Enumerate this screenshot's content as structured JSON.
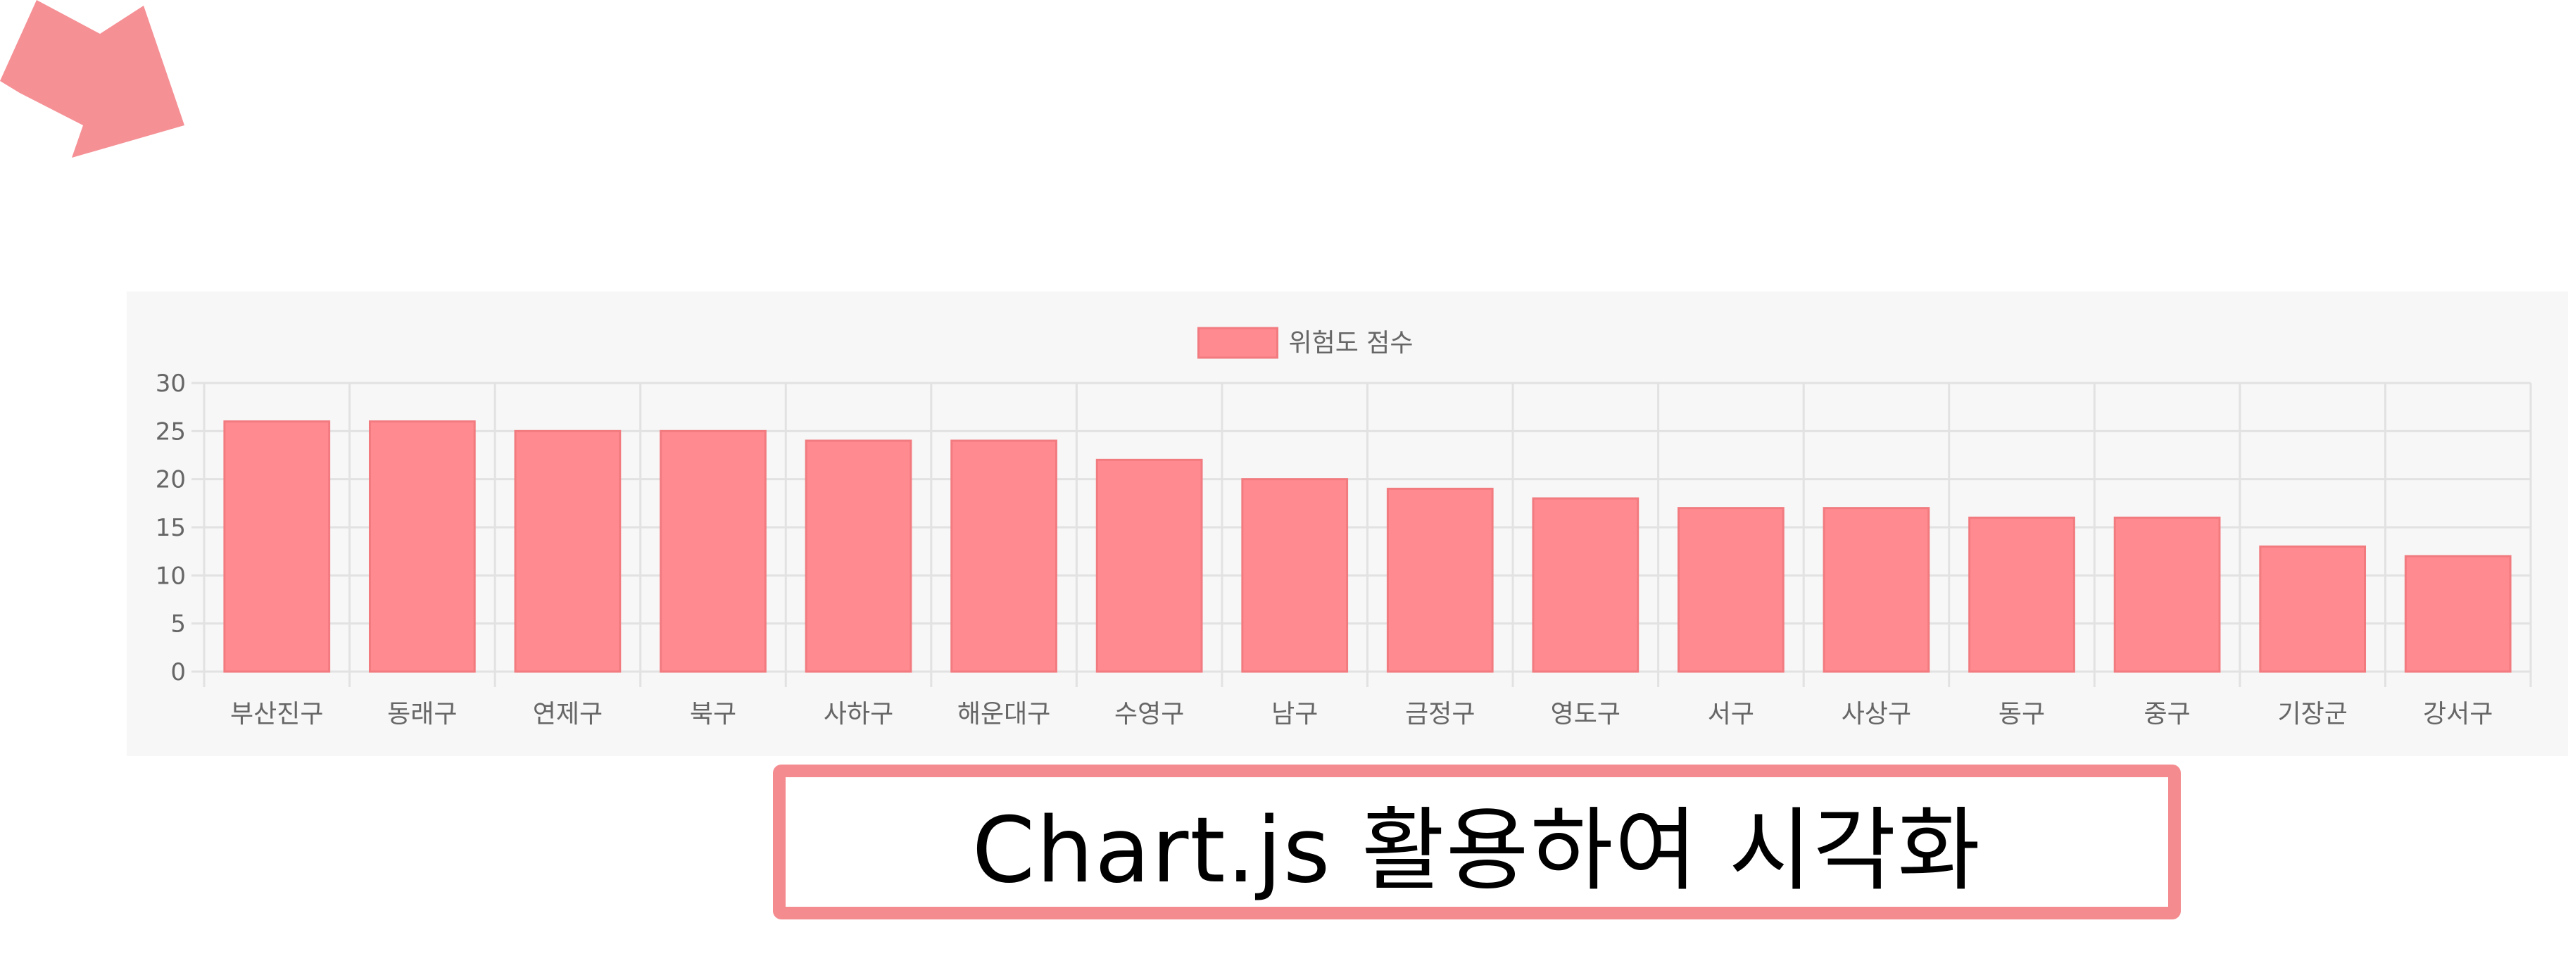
{
  "decoration": {
    "arrow_icon": "arrow-down-right-icon",
    "arrow_color": "#f59095"
  },
  "caption": {
    "text": "Chart.js 활용하여 시각화",
    "border_color": "#f48b8f"
  },
  "chart_data": {
    "type": "bar",
    "categories": [
      "부산진구",
      "동래구",
      "연제구",
      "북구",
      "사하구",
      "해운대구",
      "수영구",
      "남구",
      "금정구",
      "영도구",
      "서구",
      "사상구",
      "동구",
      "중구",
      "기장군",
      "강서구"
    ],
    "series": [
      {
        "name": "위험도 점수",
        "values": [
          26,
          26,
          25,
          25,
          24,
          24,
          22,
          20,
          19,
          18,
          17,
          17,
          16,
          16,
          13,
          12
        ],
        "color": "#ff8a8f"
      }
    ],
    "ylim": [
      0,
      30
    ],
    "yticks": [
      0,
      5,
      10,
      15,
      20,
      25,
      30
    ],
    "grid": true,
    "legend": "top-center",
    "background": "#f7f7f7"
  }
}
